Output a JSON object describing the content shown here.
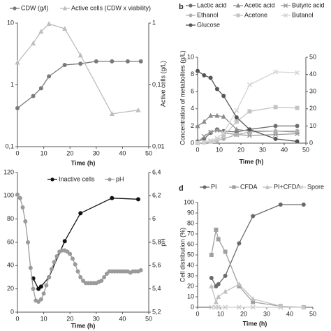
{
  "chart_data": [
    {
      "type": "line",
      "xlabel": "Time (h)",
      "y2label": "Active cells (g/L)",
      "xlim": [
        0,
        50
      ],
      "xticks": [
        0,
        10,
        20,
        30,
        40,
        50
      ],
      "yscale": "log",
      "ylim": [
        0.1,
        10
      ],
      "yticks": [
        {
          "value": 0.1,
          "label": "0,1"
        },
        1,
        10
      ],
      "y2scale": "log",
      "y2lim": [
        0.01,
        1
      ],
      "y2ticks": [
        {
          "value": 0.01,
          "label": "0,01"
        },
        {
          "value": 0.1,
          "label": "0,1"
        },
        1
      ],
      "series": [
        {
          "name": "CDW (g/l)",
          "color": "#7a7a7a",
          "marker": "circle",
          "x": [
            0,
            6,
            9,
            12,
            18,
            24,
            30,
            36,
            42,
            47
          ],
          "values": [
            0.42,
            0.66,
            0.88,
            1.37,
            2.1,
            2.2,
            2.4,
            2.4,
            2.4,
            2.4
          ]
        },
        {
          "name": "Active cells (CDW x viability)",
          "color": "#bdbdbd",
          "marker": "triangle",
          "axis": "y2",
          "x": [
            0,
            6,
            9,
            12,
            18,
            24,
            36,
            46
          ],
          "values": [
            0.23,
            0.47,
            0.73,
            0.97,
            0.81,
            0.3,
            0.034,
            0.039
          ]
        }
      ]
    },
    {
      "type": "line",
      "panel_label": "b",
      "xlabel": "Time (h)",
      "ylabel": "Concentration of metabolites (g/L)",
      "xlim": [
        0,
        50
      ],
      "xticks": [
        0,
        10,
        20,
        30,
        40,
        50
      ],
      "ylim": [
        0,
        10
      ],
      "yticks": [
        0,
        2,
        4,
        6,
        8,
        10
      ],
      "y2lim": [
        0,
        50
      ],
      "y2ticks": [
        0,
        10,
        20,
        30,
        40,
        50
      ],
      "series": [
        {
          "name": "Lactic acid",
          "color": "#6e6e6e",
          "marker": "circle",
          "x": [
            0,
            3,
            6,
            9,
            12,
            18,
            24,
            36,
            46
          ],
          "values": [
            0.2,
            0.5,
            1.2,
            1.6,
            1.4,
            1.3,
            1.6,
            2.0,
            2.0
          ]
        },
        {
          "name": "Acetic acid",
          "color": "#8c8c8c",
          "marker": "triangle",
          "x": [
            0,
            3,
            6,
            9,
            12,
            18,
            24,
            36,
            46
          ],
          "values": [
            2.0,
            2.5,
            3.2,
            3.2,
            3.1,
            1.6,
            1.4,
            1.4,
            1.3
          ]
        },
        {
          "name": "Butyric acid",
          "color": "#9a9a9a",
          "marker": "x",
          "x": [
            0,
            3,
            6,
            9,
            12,
            18,
            24,
            36,
            46
          ],
          "values": [
            0.1,
            0.8,
            1.3,
            1.5,
            1.2,
            1.0,
            0.9,
            1.0,
            1.1
          ]
        },
        {
          "name": "Ethanol",
          "color": "#b0b0b0",
          "marker": "circle",
          "x": [
            0,
            3,
            6,
            9,
            12,
            18,
            24,
            36,
            46
          ],
          "values": [
            0,
            0.1,
            0.2,
            0.3,
            0.5,
            1.0,
            1.3,
            1.4,
            1.4
          ]
        },
        {
          "name": "Acetone",
          "color": "#c4c4c4",
          "marker": "square",
          "x": [
            0,
            3,
            6,
            9,
            12,
            18,
            24,
            36,
            46
          ],
          "values": [
            0,
            0.1,
            0.2,
            0.4,
            0.8,
            2.5,
            3.7,
            4.2,
            4.1
          ]
        },
        {
          "name": "Butanol",
          "color": "#d4d4d4",
          "marker": "x",
          "x": [
            0,
            3,
            6,
            9,
            12,
            18,
            24,
            36,
            46
          ],
          "values": [
            0,
            0.1,
            0.3,
            0.6,
            1.2,
            3.8,
            6.8,
            8.3,
            8.2
          ]
        },
        {
          "name": "Glucose",
          "color": "#555555",
          "marker": "circle",
          "axis": "y2",
          "x": [
            0,
            3,
            6,
            9,
            12,
            18,
            24,
            36,
            46
          ],
          "values": [
            42,
            39.5,
            38,
            31.5,
            27.5,
            15,
            8,
            2.5,
            1
          ]
        }
      ]
    },
    {
      "type": "line",
      "xlabel": "Time (h)",
      "y2label": "pH",
      "xlim": [
        0,
        50
      ],
      "xticks": [
        0,
        10,
        20,
        30,
        40,
        50
      ],
      "ylim": [
        0,
        120
      ],
      "yticks": [
        0,
        20,
        40,
        60,
        80,
        100,
        120
      ],
      "y2lim": [
        5.2,
        6.4
      ],
      "y2ticks": [
        {
          "value": 5.2,
          "label": "5,2"
        },
        {
          "value": 5.4,
          "label": "5,4"
        },
        {
          "value": 5.6,
          "label": "5,6"
        },
        {
          "value": 5.8,
          "label": "5,8"
        },
        6,
        {
          "value": 6.2,
          "label": "6,2"
        },
        {
          "value": 6.4,
          "label": "6,4"
        }
      ],
      "series": [
        {
          "name": "Inactive cells",
          "color": "#111111",
          "marker": "circle",
          "x": [
            6,
            8,
            9,
            12,
            18,
            24,
            36,
            46
          ],
          "values": [
            29,
            20,
            22,
            30,
            61,
            85,
            98,
            97
          ]
        },
        {
          "name": "pH",
          "color": "#9a9a9a",
          "marker": "circle",
          "axis": "y2",
          "x": [
            0,
            1,
            2,
            3,
            4,
            5,
            6,
            7,
            8,
            9,
            10,
            11,
            12,
            13,
            14,
            15,
            16,
            17,
            18,
            19,
            20,
            21,
            22,
            23,
            24,
            25,
            26,
            27,
            28,
            29,
            30,
            31,
            32,
            33,
            34,
            35,
            36,
            37,
            38,
            39,
            40,
            41,
            42,
            43,
            44,
            45,
            46,
            47
          ],
          "values": [
            6.21,
            6.18,
            6.1,
            5.98,
            5.8,
            5.58,
            5.4,
            5.3,
            5.29,
            5.31,
            5.36,
            5.43,
            5.5,
            5.57,
            5.63,
            5.68,
            5.72,
            5.73,
            5.73,
            5.72,
            5.7,
            5.66,
            5.61,
            5.55,
            5.5,
            5.47,
            5.45,
            5.45,
            5.45,
            5.45,
            5.45,
            5.46,
            5.47,
            5.5,
            5.53,
            5.55,
            5.55,
            5.55,
            5.55,
            5.55,
            5.55,
            5.55,
            5.55,
            5.54,
            5.55,
            5.55,
            5.55,
            5.56
          ]
        }
      ]
    },
    {
      "type": "line",
      "panel_label": "d",
      "xlabel": "Time (h)",
      "ylabel": "Cell distribution (%)",
      "xlim": [
        0,
        50
      ],
      "xticks": [
        0,
        10,
        20,
        30,
        40,
        50
      ],
      "ylim": [
        0,
        100
      ],
      "yticks": [
        0,
        10,
        20,
        30,
        40,
        50,
        60,
        70,
        80,
        90,
        100
      ],
      "series": [
        {
          "name": "PI",
          "color": "#6a6a6a",
          "marker": "circle",
          "x": [
            6,
            8,
            9,
            12,
            18,
            24,
            36,
            46
          ],
          "values": [
            28,
            20,
            22,
            30,
            61,
            87,
            98,
            98
          ]
        },
        {
          "name": "CFDA",
          "color": "#a0a0a0",
          "marker": "square",
          "x": [
            6,
            8,
            9,
            12,
            18,
            24,
            36,
            46
          ],
          "values": [
            50,
            74,
            65,
            53,
            20,
            5,
            1,
            0
          ]
        },
        {
          "name": "PI+CFDA",
          "color": "#c0c0c0",
          "marker": "triangle",
          "x": [
            6,
            8,
            9,
            12,
            18,
            24,
            36,
            46
          ],
          "values": [
            20,
            5,
            10,
            15,
            22,
            8,
            1,
            0
          ]
        },
        {
          "name": "Spore",
          "color": "#cccccc",
          "marker": "x",
          "x": [
            6,
            8,
            9,
            12,
            18,
            24,
            36,
            46
          ],
          "values": [
            0,
            0,
            0,
            0,
            0,
            0,
            0,
            0
          ]
        }
      ]
    }
  ]
}
